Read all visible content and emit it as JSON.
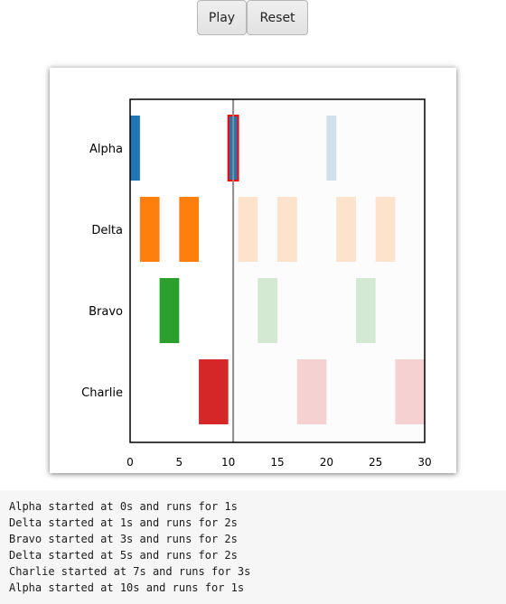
{
  "controls": {
    "play_label": "Play",
    "reset_label": "Reset"
  },
  "chart_data": {
    "type": "timeline",
    "categories": [
      "Alpha",
      "Delta",
      "Bravo",
      "Charlie"
    ],
    "colors": {
      "Alpha": "#1f77b4",
      "Delta": "#ff7f0e",
      "Bravo": "#2ca02c",
      "Charlie": "#d62728"
    },
    "xlim": [
      0,
      30
    ],
    "xticks": [
      0,
      5,
      10,
      15,
      20,
      25,
      30
    ],
    "current_time": 10.5,
    "highlight": {
      "category": "Alpha",
      "start": 10,
      "duration": 1,
      "outline_color": "#ff0000"
    },
    "events": [
      {
        "category": "Alpha",
        "start": 0,
        "duration": 1
      },
      {
        "category": "Delta",
        "start": 1,
        "duration": 2
      },
      {
        "category": "Bravo",
        "start": 3,
        "duration": 2
      },
      {
        "category": "Delta",
        "start": 5,
        "duration": 2
      },
      {
        "category": "Charlie",
        "start": 7,
        "duration": 3
      },
      {
        "category": "Alpha",
        "start": 10,
        "duration": 1
      },
      {
        "category": "Delta",
        "start": 11,
        "duration": 2
      },
      {
        "category": "Bravo",
        "start": 13,
        "duration": 2
      },
      {
        "category": "Delta",
        "start": 15,
        "duration": 2
      },
      {
        "category": "Charlie",
        "start": 17,
        "duration": 3
      },
      {
        "category": "Alpha",
        "start": 20,
        "duration": 1
      },
      {
        "category": "Delta",
        "start": 21,
        "duration": 2
      },
      {
        "category": "Bravo",
        "start": 23,
        "duration": 2
      },
      {
        "category": "Delta",
        "start": 25,
        "duration": 2
      },
      {
        "category": "Charlie",
        "start": 27,
        "duration": 3
      }
    ]
  },
  "log": [
    "Alpha started at 0s and runs for 1s",
    "Delta started at 1s and runs for 2s",
    "Bravo started at 3s and runs for 2s",
    "Delta started at 5s and runs for 2s",
    "Charlie started at 7s and runs for 3s",
    "Alpha started at 10s and runs for 1s"
  ]
}
